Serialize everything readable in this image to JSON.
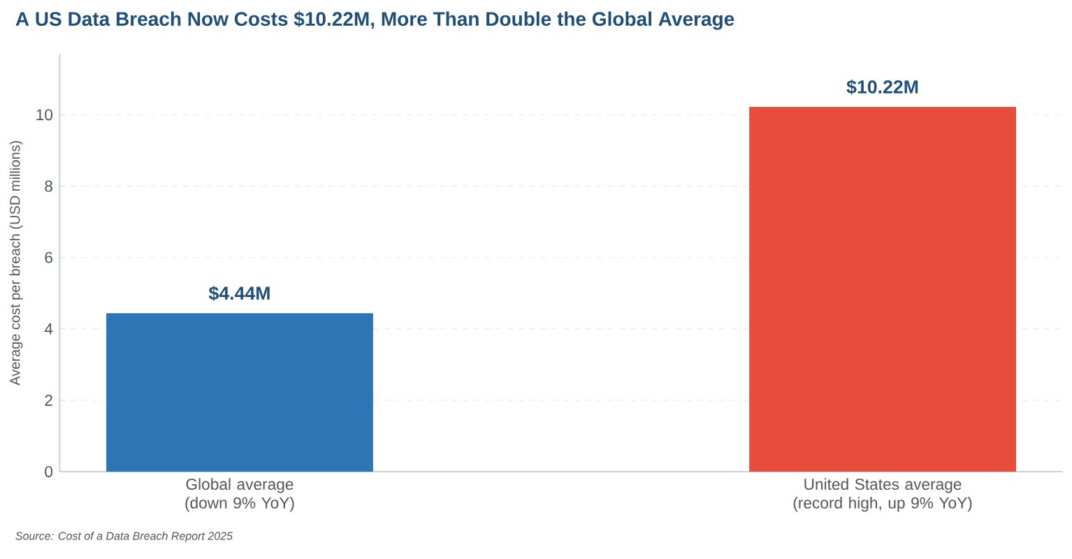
{
  "chart_data": {
    "type": "bar",
    "title": "A US Data Breach Now Costs $10.22M, More Than Double the Global Average",
    "ylabel": "Average cost per breach (USD millions)",
    "categories": [
      "Global average (down 9% YoY)",
      "United States average (record high, up 9% YoY)"
    ],
    "values": [
      4.44,
      10.22
    ],
    "colors": [
      "#2e75b6",
      "#e74c3c"
    ],
    "value_labels": [
      "$4.44M",
      "$10.22M"
    ],
    "ylim": [
      0,
      11.7
    ],
    "yticks": [
      0,
      2,
      4,
      6,
      8,
      10
    ],
    "grid": "y",
    "annotations": [
      "Source: Cost of a Data Breach Report 2025"
    ]
  }
}
